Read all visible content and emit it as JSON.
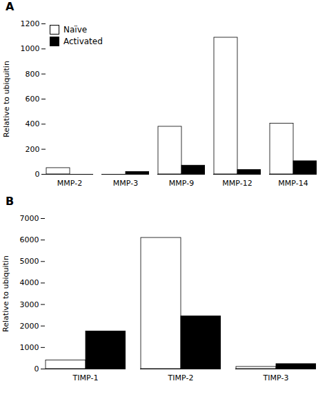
{
  "chart_data": [
    {
      "type": "bar",
      "title": "A",
      "categories": [
        "MMP-2",
        "MMP-3",
        "MMP-9",
        "MMP-12",
        "MMP-14"
      ],
      "series": [
        {
          "name": "Naïve",
          "color": "#ffffff",
          "values": [
            50,
            0,
            380,
            1090,
            405
          ]
        },
        {
          "name": "Activated",
          "color": "#000000",
          "values": [
            0,
            20,
            70,
            35,
            105
          ]
        }
      ],
      "ylabel": "Relative to ubiquitin",
      "ylim": [
        0,
        1200
      ],
      "yticks": [
        0,
        200,
        400,
        600,
        800,
        1000,
        1200
      ],
      "legend": "upper left"
    },
    {
      "type": "bar",
      "title": "B",
      "categories": [
        "TIMP-1",
        "TIMP-2",
        "TIMP-3"
      ],
      "series": [
        {
          "name": "Naïve",
          "color": "#ffffff",
          "values": [
            400,
            6100,
            100
          ]
        },
        {
          "name": "Activated",
          "color": "#000000",
          "values": [
            1750,
            2450,
            230
          ]
        }
      ],
      "ylabel": "Relative to ubiquitin",
      "ylim": [
        0,
        7000
      ],
      "yticks": [
        0,
        1000,
        2000,
        3000,
        4000,
        5000,
        6000,
        7000
      ]
    }
  ]
}
